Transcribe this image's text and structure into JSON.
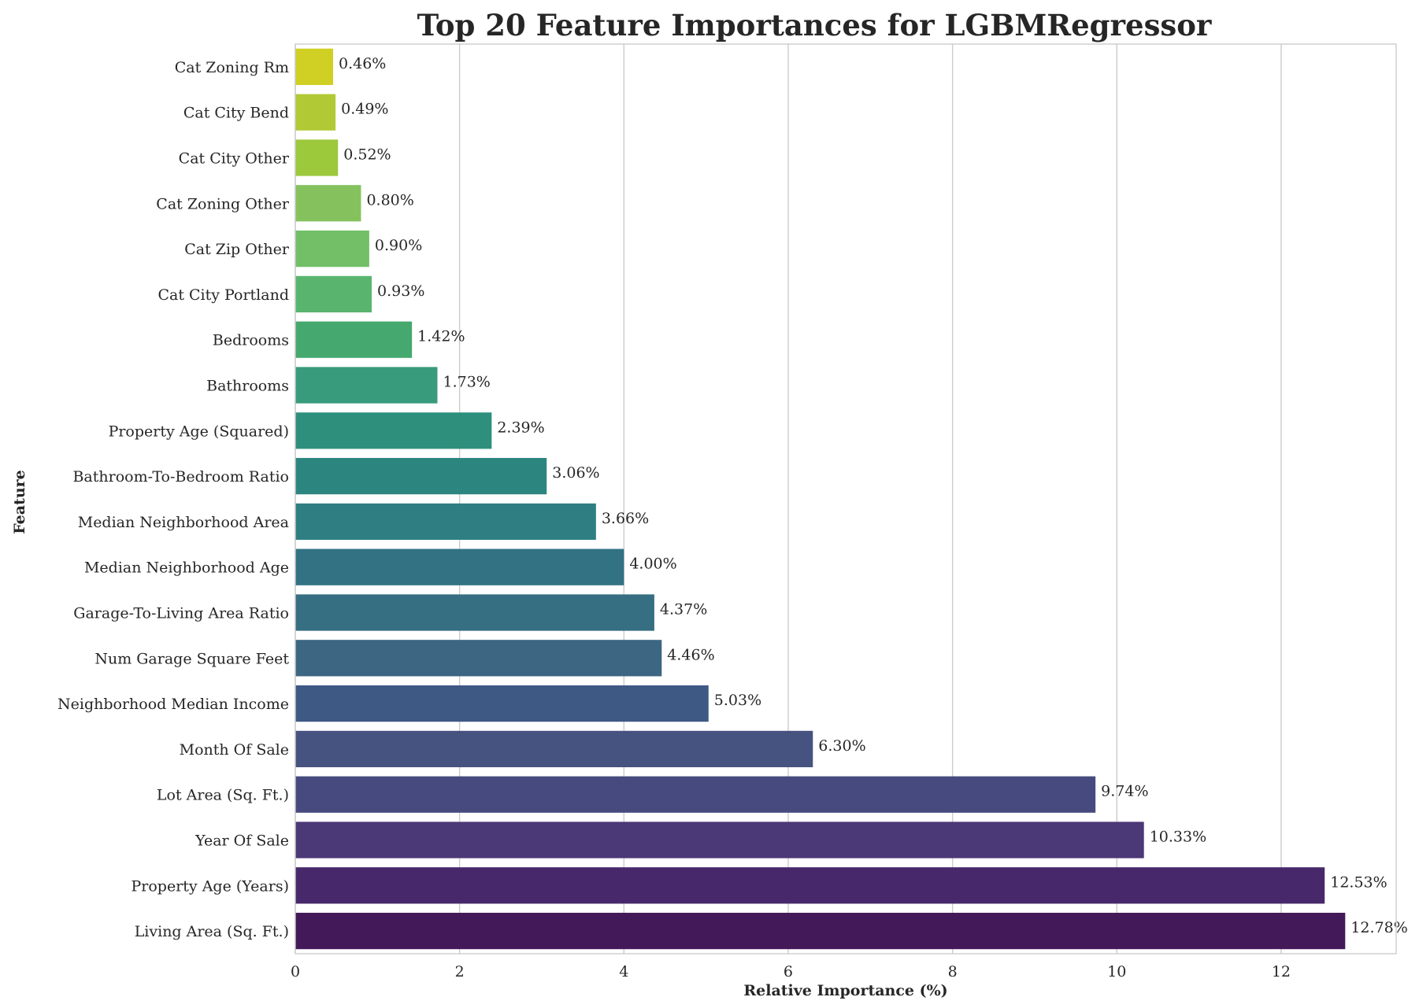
{
  "chart_data": {
    "type": "bar",
    "orientation": "horizontal",
    "title": "Top 20 Feature Importances for LGBMRegressor",
    "xlabel": "Relative Importance (%)",
    "ylabel": "Feature",
    "xlim": [
      0,
      13.4
    ],
    "xticks": [
      0,
      2,
      4,
      6,
      8,
      10,
      12
    ],
    "grid": "vertical",
    "legend": "none",
    "categories": [
      "Cat  Zoning Rm",
      "Cat  City Bend",
      "Cat  City Other",
      "Cat  Zoning Other",
      "Cat  Zip Other",
      "Cat  City Portland",
      "Bedrooms",
      "Bathrooms",
      "Property Age (Squared)",
      "Bathroom-To-Bedroom Ratio",
      "Median Neighborhood Area",
      "Median Neighborhood Age",
      "Garage-To-Living Area Ratio",
      "Num  Garage Square Feet",
      "Neighborhood Median Income",
      "Month Of Sale",
      "Lot Area (Sq. Ft.)",
      "Year Of Sale",
      "Property Age (Years)",
      "Living Area (Sq. Ft.)"
    ],
    "values": [
      0.46,
      0.49,
      0.52,
      0.8,
      0.9,
      0.93,
      1.42,
      1.73,
      2.39,
      3.06,
      3.66,
      4.0,
      4.37,
      4.46,
      5.03,
      6.3,
      9.74,
      10.33,
      12.53,
      12.78
    ],
    "data_labels": [
      "0.46%",
      "0.49%",
      "0.52%",
      "0.80%",
      "0.90%",
      "0.93%",
      "1.42%",
      "1.73%",
      "2.39%",
      "3.06%",
      "3.66%",
      "4.00%",
      "4.37%",
      "4.46%",
      "5.03%",
      "6.30%",
      "9.74%",
      "10.33%",
      "12.53%",
      "12.78%"
    ],
    "colors": [
      "#d0cf23",
      "#b2c936",
      "#9cc83c",
      "#85c25e",
      "#72bf68",
      "#59b56e",
      "#45a86f",
      "#379b7c",
      "#2e8f7d",
      "#2c867f",
      "#2e7e82",
      "#327283",
      "#366e82",
      "#3d6682",
      "#3f5985",
      "#46527f",
      "#474a7e",
      "#4b3877",
      "#47296b",
      "#44195a"
    ]
  }
}
